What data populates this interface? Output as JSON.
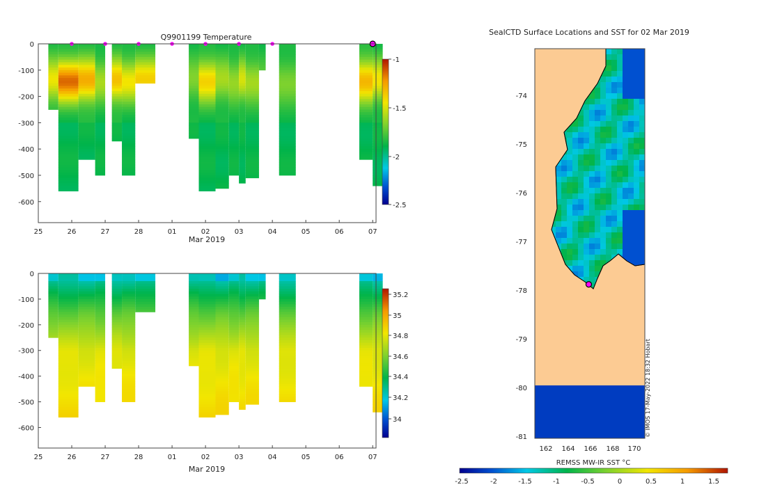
{
  "temperature_panel": {
    "title": "Q9901199  Temperature",
    "xlabel": "Mar 2019",
    "colorbar_ticks": [
      "-1",
      "-1.5",
      "-2",
      "-2.5"
    ]
  },
  "salinity_panel": {
    "xlabel": "Mar 2019",
    "colorbar_ticks": [
      "35.2",
      "35",
      "34.8",
      "34.6",
      "34.4",
      "34.2",
      "34"
    ]
  },
  "map_panel": {
    "title": "SealCTD Surface Locations and SST for 02 Mar 2019",
    "colorbar_label": "REMSS MW-IR SST °C",
    "watermark": "© IMOS 17-May-2022 18:32 Hobart",
    "lat_ticks": [
      "-74",
      "-75",
      "-76",
      "-77",
      "-78",
      "-79",
      "-80",
      "-81"
    ],
    "lon_ticks": [
      "162",
      "164",
      "166",
      "168",
      "170"
    ],
    "colorbar_ticks": [
      "-2.5",
      "-2",
      "-1.5",
      "-1",
      "-0.5",
      "0",
      "0.5",
      "1",
      "1.5"
    ]
  },
  "colors": {
    "land": "#fccb93",
    "outline": "#000000",
    "marker": "#ff00ff"
  },
  "chart_data": [
    {
      "type": "heatmap",
      "title": "Q9901199  Temperature",
      "xlabel": "Mar 2019",
      "ylabel": "",
      "x_tick_labels": [
        "25",
        "26",
        "27",
        "28",
        "01",
        "02",
        "03",
        "04",
        "05",
        "06",
        "07"
      ],
      "y_tick_labels": [
        "0",
        "-100",
        "-200",
        "-300",
        "-400",
        "-500",
        "-600"
      ],
      "xlim": [
        25.0,
        35.1
      ],
      "ylim": [
        -680,
        0
      ],
      "clim": [
        -2.5,
        -1.0
      ],
      "profile_days": [
        25.3,
        25.6,
        26.2,
        26.7,
        27.2,
        27.5,
        27.9,
        28.3,
        29.5,
        29.8,
        30.3,
        30.7,
        31.0,
        31.2,
        31.6,
        32.2,
        32.7,
        34.6,
        35.0
      ],
      "profile_ends": [
        25.6,
        26.2,
        26.7,
        27.0,
        27.5,
        27.9,
        28.5,
        29.7,
        29.8,
        30.3,
        30.7,
        31.0,
        31.2,
        31.6,
        31.8,
        32.7,
        32.8,
        35.0,
        35.3
      ],
      "profile_max_depth": [
        250,
        560,
        440,
        500,
        370,
        500,
        150,
        0,
        355,
        555,
        545,
        500,
        530,
        505,
        100,
        500,
        0,
        435,
        535
      ],
      "surface_marker_days": [
        26.0,
        27.0,
        28.0,
        29.0,
        30.0,
        31.0,
        32.0
      ],
      "colorbar_ticks": [
        -1.0,
        -1.5,
        -2.0,
        -2.5
      ]
    },
    {
      "type": "heatmap",
      "title": "",
      "xlabel": "Mar 2019",
      "ylabel": "",
      "x_tick_labels": [
        "25",
        "26",
        "27",
        "28",
        "01",
        "02",
        "03",
        "04",
        "05",
        "06",
        "07"
      ],
      "y_tick_labels": [
        "0",
        "-100",
        "-200",
        "-300",
        "-400",
        "-500",
        "-600"
      ],
      "xlim": [
        25.0,
        35.1
      ],
      "ylim": [
        -680,
        0
      ],
      "clim": [
        33.9,
        35.3
      ],
      "colorbar_ticks": [
        35.2,
        35.0,
        34.8,
        34.6,
        34.4,
        34.2,
        34.0
      ]
    },
    {
      "type": "heatmap",
      "title": "SealCTD Surface Locations and SST for 02 Mar 2019",
      "xlabel": "",
      "ylabel": "",
      "lon_range": [
        161.0,
        171.2
      ],
      "lat_range": [
        -81.1,
        -73.0
      ],
      "x_tick_labels": [
        162,
        164,
        166,
        168,
        170
      ],
      "y_tick_labels": [
        -74,
        -75,
        -76,
        -77,
        -78,
        -79,
        -80,
        -81
      ],
      "clim": [
        -2.5,
        1.7
      ],
      "colorbar_label": "REMSS MW-IR SST °C",
      "colorbar_ticks": [
        -2.5,
        -2,
        -1.5,
        -1,
        -0.5,
        0,
        0.5,
        1,
        1.5
      ],
      "seal_location": {
        "lon": 166.0,
        "lat": -77.9
      }
    }
  ]
}
